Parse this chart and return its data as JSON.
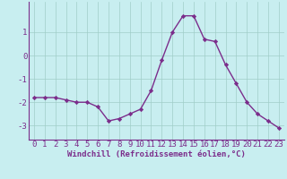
{
  "x": [
    0,
    1,
    2,
    3,
    4,
    5,
    6,
    7,
    8,
    9,
    10,
    11,
    12,
    13,
    14,
    15,
    16,
    17,
    18,
    19,
    20,
    21,
    22,
    23
  ],
  "y": [
    -1.8,
    -1.8,
    -1.8,
    -1.9,
    -2.0,
    -2.0,
    -2.2,
    -2.8,
    -2.7,
    -2.5,
    -2.3,
    -1.5,
    -0.2,
    1.0,
    1.7,
    1.7,
    0.7,
    0.6,
    -0.4,
    -1.2,
    -2.0,
    -2.5,
    -2.8,
    -3.1
  ],
  "line_color": "#7b2d8b",
  "marker": "D",
  "marker_size": 2.2,
  "bg_color": "#c8eef0",
  "grid_color": "#a0cec8",
  "xlabel": "Windchill (Refroidissement éolien,°C)",
  "xlim": [
    -0.5,
    23.5
  ],
  "ylim": [
    -3.6,
    2.3
  ],
  "yticks": [
    -3,
    -2,
    -1,
    0,
    1
  ],
  "xticks": [
    0,
    1,
    2,
    3,
    4,
    5,
    6,
    7,
    8,
    9,
    10,
    11,
    12,
    13,
    14,
    15,
    16,
    17,
    18,
    19,
    20,
    21,
    22,
    23
  ],
  "xlabel_fontsize": 6.5,
  "tick_fontsize": 6.5,
  "line_width": 1.0
}
